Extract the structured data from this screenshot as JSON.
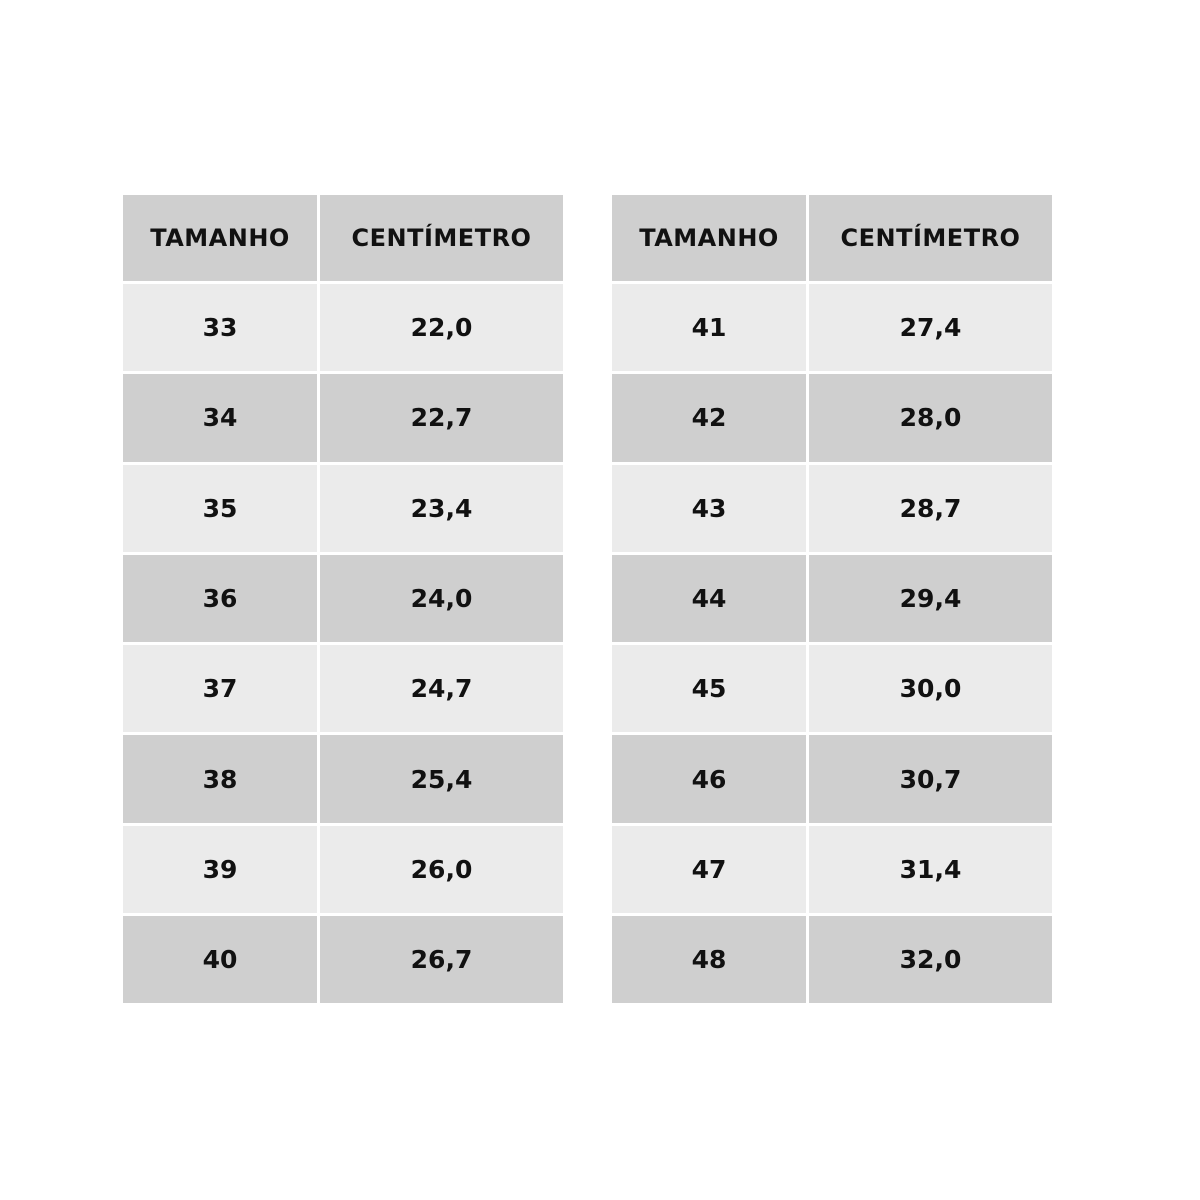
{
  "headers": [
    "TAMANHO",
    "CENTÍMETRO"
  ],
  "colors": {
    "header": "#cfcfcf",
    "row_light": "#ebebeb",
    "row_dark": "#cfcfcf",
    "text": "#111111"
  },
  "left_table": [
    [
      "33",
      "22,0"
    ],
    [
      "34",
      "22,7"
    ],
    [
      "35",
      "23,4"
    ],
    [
      "36",
      "24,0"
    ],
    [
      "37",
      "24,7"
    ],
    [
      "38",
      "25,4"
    ],
    [
      "39",
      "26,0"
    ],
    [
      "40",
      "26,7"
    ]
  ],
  "right_table": [
    [
      "41",
      "27,4"
    ],
    [
      "42",
      "28,0"
    ],
    [
      "43",
      "28,7"
    ],
    [
      "44",
      "29,4"
    ],
    [
      "45",
      "30,0"
    ],
    [
      "46",
      "30,7"
    ],
    [
      "47",
      "31,4"
    ],
    [
      "48",
      "32,0"
    ]
  ]
}
